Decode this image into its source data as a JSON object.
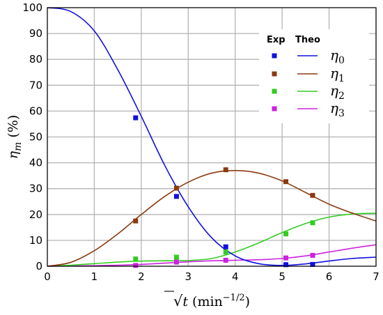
{
  "chart_data": {
    "type": "line",
    "xlabel": "√t (min^-1/2)",
    "ylabel": "ηm (%)",
    "xlim": [
      0,
      7
    ],
    "ylim": [
      0,
      100
    ],
    "xticks": [
      0,
      1,
      2,
      3,
      4,
      5,
      6,
      7
    ],
    "yticks": [
      0,
      10,
      20,
      30,
      40,
      50,
      60,
      70,
      80,
      90,
      100
    ],
    "grid": true,
    "legend": {
      "placement": "top-right",
      "col_headers": [
        "Exp",
        "Theo"
      ],
      "entries": [
        "η0",
        "η1",
        "η2",
        "η3"
      ]
    },
    "series": [
      {
        "name": "η0",
        "color": "#1010dd",
        "exp_x": [
          1.88,
          2.75,
          3.8,
          5.08,
          5.65
        ],
        "exp_y": [
          57.4,
          27.0,
          7.5,
          0.6,
          0.7
        ],
        "theo_x": [
          0,
          0.5,
          1,
          1.5,
          2,
          2.5,
          3,
          3.5,
          4,
          4.5,
          5,
          5.5,
          6,
          6.5,
          7
        ],
        "theo_y": [
          100,
          98.5,
          91,
          76,
          58,
          39,
          23,
          11,
          4,
          1,
          0.3,
          0.9,
          2,
          3,
          3.5
        ]
      },
      {
        "name": "η1",
        "color": "#8b3a10",
        "exp_x": [
          1.88,
          2.75,
          3.8,
          5.08,
          5.65
        ],
        "exp_y": [
          17.5,
          30.2,
          37.3,
          32.7,
          27.4
        ],
        "theo_x": [
          0,
          0.5,
          1,
          1.5,
          2,
          2.5,
          3,
          3.5,
          4,
          4.5,
          5,
          5.5,
          6,
          6.5,
          7
        ],
        "theo_y": [
          0,
          1.5,
          6,
          12.5,
          20,
          27,
          32.5,
          36,
          37,
          36,
          33,
          28.5,
          24,
          20.5,
          17.5
        ]
      },
      {
        "name": "η2",
        "color": "#33cc22",
        "exp_x": [
          1.88,
          2.75,
          3.8,
          5.08,
          5.65
        ],
        "exp_y": [
          2.8,
          3.5,
          5.5,
          12.5,
          16.8
        ],
        "theo_x": [
          0,
          0.5,
          1,
          1.5,
          2,
          2.5,
          3,
          3.5,
          4,
          4.5,
          5,
          5.5,
          6,
          6.5,
          7
        ],
        "theo_y": [
          0,
          0.4,
          1,
          1.6,
          2,
          2.1,
          2.2,
          3,
          5.5,
          9,
          13,
          16.5,
          19,
          20.2,
          20.5
        ]
      },
      {
        "name": "η3",
        "color": "#cc22dd",
        "exp_x": [
          1.88,
          2.75,
          3.8,
          5.08,
          5.65
        ],
        "exp_y": [
          0.3,
          1.6,
          2.3,
          3.2,
          4.2
        ],
        "theo_x": [
          0,
          0.5,
          1,
          1.5,
          2,
          2.5,
          3,
          3.5,
          4,
          4.5,
          5,
          5.5,
          6,
          6.5,
          7
        ],
        "theo_y": [
          0,
          0.1,
          0.2,
          0.4,
          0.7,
          1.2,
          1.7,
          2.1,
          2.3,
          2.5,
          3,
          4,
          5.5,
          7,
          8.3
        ]
      }
    ]
  }
}
